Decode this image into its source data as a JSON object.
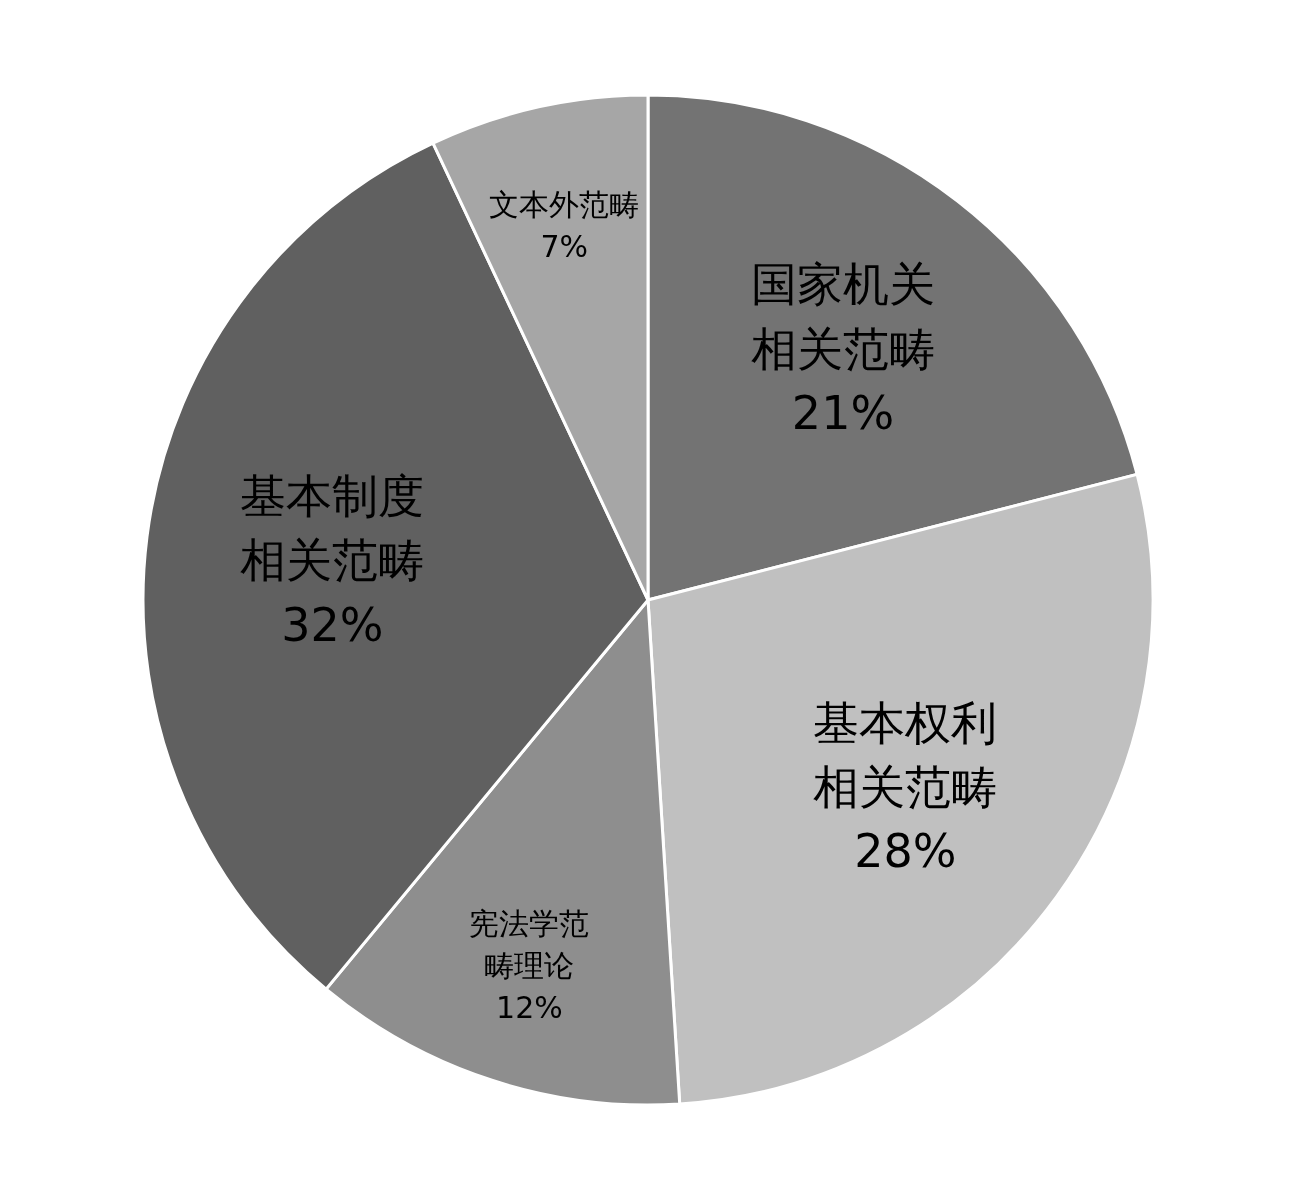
{
  "chart_data": {
    "type": "pie",
    "categories": [
      "国家机关相关范畴",
      "基本权利相关范畴",
      "宪法学范畴理论",
      "基本制度相关范畴",
      "文本外范畴"
    ],
    "values": [
      21,
      28,
      12,
      32,
      7
    ],
    "colors": [
      "#737373",
      "#c0c0c0",
      "#8e8e8e",
      "#606060",
      "#a6a6a6"
    ],
    "value_labels": [
      "21%",
      "28%",
      "12%",
      "32%",
      "7%"
    ]
  }
}
